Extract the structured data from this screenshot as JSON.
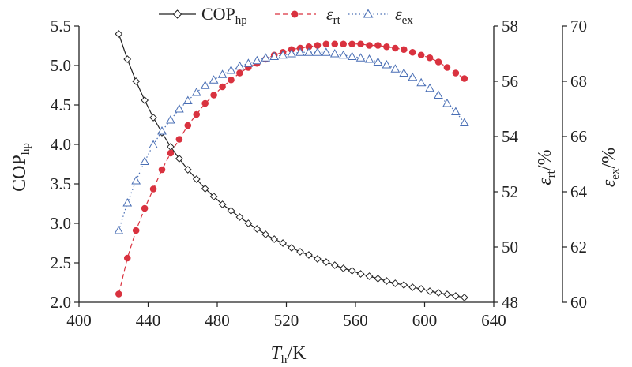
{
  "chart_data": {
    "type": "line",
    "x_axis": {
      "label_main": "T",
      "label_sub": "h",
      "label_rest": "/K",
      "range": [
        400,
        640
      ],
      "ticks": [
        "400",
        "440",
        "480",
        "520",
        "560",
        "600",
        "640"
      ]
    },
    "y_axes": {
      "left": {
        "label_main": "COP",
        "label_sub": "hp",
        "label_rest": "",
        "range": [
          2.0,
          5.5
        ],
        "ticks": [
          "2.0",
          "2.5",
          "3.0",
          "3.5",
          "4.0",
          "4.5",
          "5.0",
          "5.5"
        ]
      },
      "right1": {
        "label_main": "ε",
        "label_sub": "rt",
        "label_rest": "/%",
        "range": [
          48,
          58
        ],
        "ticks": [
          "48",
          "50",
          "52",
          "54",
          "56",
          "58"
        ]
      },
      "right2": {
        "label_main": "ε",
        "label_sub": "ex",
        "label_rest": "/%",
        "range": [
          60,
          70
        ],
        "ticks": [
          "60",
          "62",
          "64",
          "66",
          "68",
          "70"
        ]
      }
    },
    "legend": {
      "placement": "top",
      "entries": [
        {
          "main": "COP",
          "sub": "hp"
        },
        {
          "main": "ε",
          "sub": "rt"
        },
        {
          "main": "ε",
          "sub": "ex"
        }
      ]
    },
    "grid": false,
    "x": [
      423,
      428,
      433,
      438,
      443,
      448,
      453,
      458,
      463,
      468,
      473,
      478,
      483,
      488,
      493,
      498,
      503,
      508,
      513,
      518,
      523,
      528,
      533,
      538,
      543,
      548,
      553,
      558,
      563,
      568,
      573,
      578,
      583,
      588,
      593,
      598,
      603,
      608,
      613,
      618,
      623
    ],
    "series": [
      {
        "legend_index": 0,
        "axis": "left",
        "marker": "diamond",
        "line": "solid",
        "color": "#222222",
        "values": [
          5.4,
          5.08,
          4.8,
          4.56,
          4.34,
          4.15,
          3.97,
          3.82,
          3.68,
          3.56,
          3.44,
          3.34,
          3.24,
          3.16,
          3.08,
          3.0,
          2.93,
          2.86,
          2.8,
          2.75,
          2.69,
          2.64,
          2.6,
          2.55,
          2.51,
          2.47,
          2.43,
          2.4,
          2.36,
          2.33,
          2.3,
          2.27,
          2.24,
          2.22,
          2.19,
          2.17,
          2.14,
          2.12,
          2.1,
          2.08,
          2.06
        ]
      },
      {
        "legend_index": 1,
        "axis": "right1",
        "marker": "circle",
        "line": "dashed",
        "color": "#d9323f",
        "values": [
          48.3,
          49.6,
          50.6,
          51.4,
          52.1,
          52.8,
          53.4,
          53.9,
          54.4,
          54.8,
          55.2,
          55.5,
          55.8,
          56.05,
          56.3,
          56.5,
          56.65,
          56.8,
          56.95,
          57.05,
          57.15,
          57.2,
          57.25,
          57.3,
          57.35,
          57.35,
          57.35,
          57.35,
          57.35,
          57.3,
          57.3,
          57.25,
          57.2,
          57.15,
          57.05,
          56.95,
          56.85,
          56.7,
          56.5,
          56.3,
          56.1
        ]
      },
      {
        "legend_index": 2,
        "axis": "right2",
        "marker": "triangle",
        "line": "dotted",
        "color": "#4a6fb5",
        "values": [
          62.6,
          63.6,
          64.4,
          65.1,
          65.7,
          66.2,
          66.6,
          67.0,
          67.3,
          67.6,
          67.85,
          68.05,
          68.25,
          68.4,
          68.55,
          68.65,
          68.75,
          68.85,
          68.9,
          68.95,
          69.0,
          69.05,
          69.05,
          69.05,
          69.05,
          69.0,
          68.95,
          68.9,
          68.85,
          68.8,
          68.7,
          68.6,
          68.45,
          68.3,
          68.15,
          67.95,
          67.75,
          67.5,
          67.2,
          66.9,
          66.5
        ]
      }
    ]
  }
}
